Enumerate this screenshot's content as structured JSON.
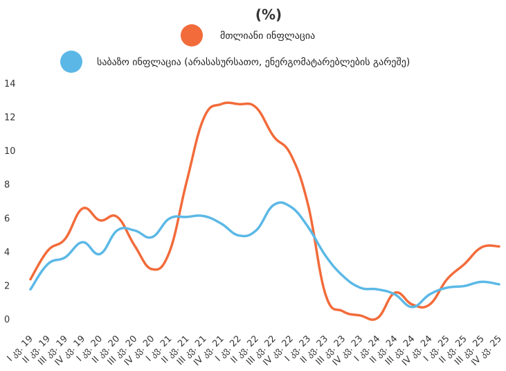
{
  "chart_data": {
    "type": "line",
    "title": "(%)",
    "x": [
      "I კვ. 19",
      "II კვ. 19",
      "III კვ. 19",
      "IV კვ. 19",
      "I კვ. 20",
      "II კვ. 20",
      "III კვ. 20",
      "IV კვ. 20",
      "I კვ. 21",
      "II კვ. 21",
      "III კვ. 21",
      "IV კვ. 21",
      "I კვ. 22",
      "II კვ. 22",
      "III კვ. 22",
      "IV კვ. 22",
      "I კვ. 23",
      "II კვ. 23",
      "III კვ. 23",
      "IV კვ. 23",
      "I კვ. 24",
      "II კვ. 24",
      "III კვ. 24",
      "IV კვ. 24",
      "I კვ. 25",
      "II კვ. 25",
      "III კვ. 25",
      "IV კვ. 25"
    ],
    "series": [
      {
        "name": "მთლიანი ინფლაცია",
        "color": "#F26B3A",
        "values": [
          2.4,
          4.1,
          4.8,
          6.6,
          5.9,
          6.1,
          4.4,
          3.0,
          4.0,
          8.2,
          12.0,
          12.8,
          12.8,
          12.6,
          10.9,
          9.8,
          6.8,
          1.5,
          0.5,
          0.25,
          0.1,
          1.6,
          0.9,
          0.9,
          2.4,
          3.3,
          4.3,
          4.35
        ]
      },
      {
        "name": "საბაზო ინფლაცია (არასასურსათო, ენერგომატარებლების გარეშე)",
        "color": "#5BB8E6",
        "values": [
          1.8,
          3.3,
          3.7,
          4.6,
          3.9,
          5.3,
          5.3,
          4.9,
          6.0,
          6.1,
          6.15,
          5.7,
          5.0,
          5.3,
          6.8,
          6.7,
          5.5,
          3.8,
          2.6,
          1.9,
          1.8,
          1.5,
          0.75,
          1.5,
          1.9,
          2.0,
          2.25,
          2.1
        ]
      }
    ],
    "ylim": [
      0,
      14
    ],
    "yticks": [
      0,
      2,
      4,
      6,
      8,
      10,
      12,
      14
    ],
    "grid": false,
    "legend_position": "top"
  }
}
